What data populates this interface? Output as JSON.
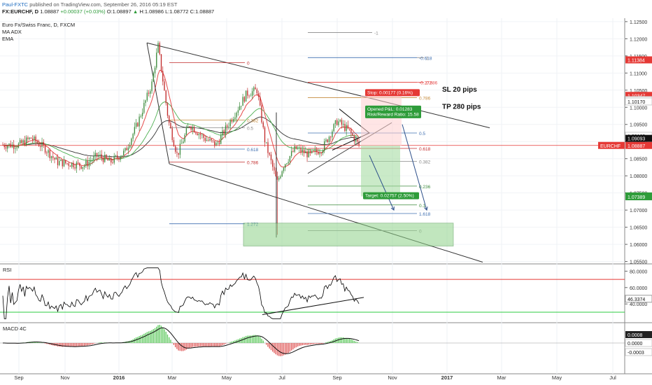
{
  "header": {
    "publisher": "Paul-FXTC",
    "published_text": "published on TradingView.com, September 26, 2016 05:19 EST",
    "symbol_line": "FX:EURCHF, D",
    "ohlc": {
      "last": "1.08887",
      "change": "+0.00037 (+0.03%)",
      "open": "O:1.08897",
      "high": "H:1.08986",
      "low": "L:1.08772",
      "close": "C:1.08887"
    },
    "instrument": "Euro Fx/Swiss Franc, D, FXCM",
    "indicators": [
      "MA ADX",
      "EMA"
    ]
  },
  "colors": {
    "up_candle": "#3b8a3b",
    "down_candle": "#c22b2b",
    "ema_fast": "#e54b4b",
    "ema_slow": "#4caf50",
    "sma": "#333333",
    "price_line": "#e53935",
    "sl_box": "#e53935",
    "tp_box": "#2e9c3a",
    "target_zone": "#8fd38a",
    "fib_blue": "#3f6fb0",
    "rsi_line": "#000000",
    "rsi_upper": "#e53935",
    "rsi_lower": "#2ecc40",
    "macd_pos": "#5ec95e",
    "macd_neg": "#e05a5a"
  },
  "annotations": {
    "stop": "Stop: 0.00177 (0.16%)",
    "opened_pl": "Opened P&L: 0.01283",
    "risk_reward": "Risk/Reward Ratio: 15.58",
    "target": "Target: 0.02757 (2.50%)",
    "sl_text": "SL 20 pips",
    "tp_text": "TP 280 pips"
  },
  "price_scale": {
    "ticks": [
      "1.12500",
      "1.12000",
      "1.11500",
      "1.11000",
      "1.10500",
      "1.10000",
      "1.09500",
      "1.09000",
      "1.08500",
      "1.08000",
      "1.07500",
      "1.07000",
      "1.06500",
      "1.06000",
      "1.05500"
    ],
    "badges": [
      {
        "text": "1.11384",
        "color": "#e53935"
      },
      {
        "text": "1.10347",
        "color": "#e53935"
      },
      {
        "text": "1.10211",
        "color": "#ffffff"
      },
      {
        "text": "1.10170",
        "color": "#ffffff"
      },
      {
        "text": "1.09169",
        "color": "#ffffff"
      },
      {
        "text": "1.09093",
        "color": "#111111"
      },
      {
        "text": "1.08887",
        "color": "#e53935"
      },
      {
        "text": "1.07413",
        "color": "#2e9c3a"
      },
      {
        "text": "1.07389",
        "color": "#2e9c3a"
      }
    ],
    "symbol_badge": "EURCHF"
  },
  "rsi": {
    "label": "RSI",
    "ticks": [
      "80.0000",
      "60.0000",
      "40.0000"
    ],
    "value": "46.3374",
    "upper_level": 70,
    "lower_level": 30
  },
  "macd": {
    "label": "MACD 4C",
    "ticks": [
      "0.0000"
    ],
    "values": [
      "0.0008",
      "0.0000",
      "-0.0003"
    ]
  },
  "time_axis": [
    "Sep",
    "Nov",
    "2016",
    "Mar",
    "May",
    "Jul",
    "Sep",
    "Nov",
    "2017",
    "Mar",
    "May",
    "Jul"
  ],
  "fib_levels": {
    "big": [
      "-1",
      "-0.618",
      "1",
      "-0.272",
      "0.886",
      "0",
      "0.786",
      "0.5",
      "0.618",
      "0.382",
      "0.5",
      "0.618",
      "0.786",
      "0.382",
      "0.236",
      "1.272",
      "1.618",
      "0.1",
      "0"
    ],
    "small": [
      "0.236",
      "0.382",
      "0.5",
      "0.618",
      "0.786",
      "0.886",
      "1",
      "0.382",
      "0.236"
    ],
    "left": [
      "0",
      "0.5",
      "0.618",
      "0.786",
      "0.382",
      "0.5",
      "0.618",
      "0.786",
      "1",
      "1.272"
    ]
  },
  "chart_data": {
    "type": "line",
    "title": "Euro Fx/Swiss Franc, D, FXCM",
    "x_range": [
      "2015-09",
      "2017-07"
    ],
    "ylim": [
      1.0545,
      1.126
    ],
    "close_series": [
      {
        "date": "2015-09-01",
        "value": 1.089
      },
      {
        "date": "2015-09-15",
        "value": 1.091
      },
      {
        "date": "2015-10-01",
        "value": 1.088
      },
      {
        "date": "2015-10-15",
        "value": 1.084
      },
      {
        "date": "2015-11-01",
        "value": 1.0835
      },
      {
        "date": "2015-11-15",
        "value": 1.083
      },
      {
        "date": "2015-12-01",
        "value": 1.086
      },
      {
        "date": "2015-12-15",
        "value": 1.084
      },
      {
        "date": "2016-01-01",
        "value": 1.087
      },
      {
        "date": "2016-01-15",
        "value": 1.095
      },
      {
        "date": "2016-02-01",
        "value": 1.107
      },
      {
        "date": "2016-02-08",
        "value": 1.118
      },
      {
        "date": "2016-02-20",
        "value": 1.096
      },
      {
        "date": "2016-03-01",
        "value": 1.086
      },
      {
        "date": "2016-03-15",
        "value": 1.095
      },
      {
        "date": "2016-04-01",
        "value": 1.091
      },
      {
        "date": "2016-04-15",
        "value": 1.089
      },
      {
        "date": "2016-05-01",
        "value": 1.096
      },
      {
        "date": "2016-05-20",
        "value": 1.104
      },
      {
        "date": "2016-06-01",
        "value": 1.105
      },
      {
        "date": "2016-06-10",
        "value": 1.09
      },
      {
        "date": "2016-06-24",
        "value": 1.078
      },
      {
        "date": "2016-07-01",
        "value": 1.083
      },
      {
        "date": "2016-07-15",
        "value": 1.088
      },
      {
        "date": "2016-08-01",
        "value": 1.086
      },
      {
        "date": "2016-08-15",
        "value": 1.088
      },
      {
        "date": "2016-09-01",
        "value": 1.096
      },
      {
        "date": "2016-09-15",
        "value": 1.093
      },
      {
        "date": "2016-09-26",
        "value": 1.08887
      }
    ]
  }
}
